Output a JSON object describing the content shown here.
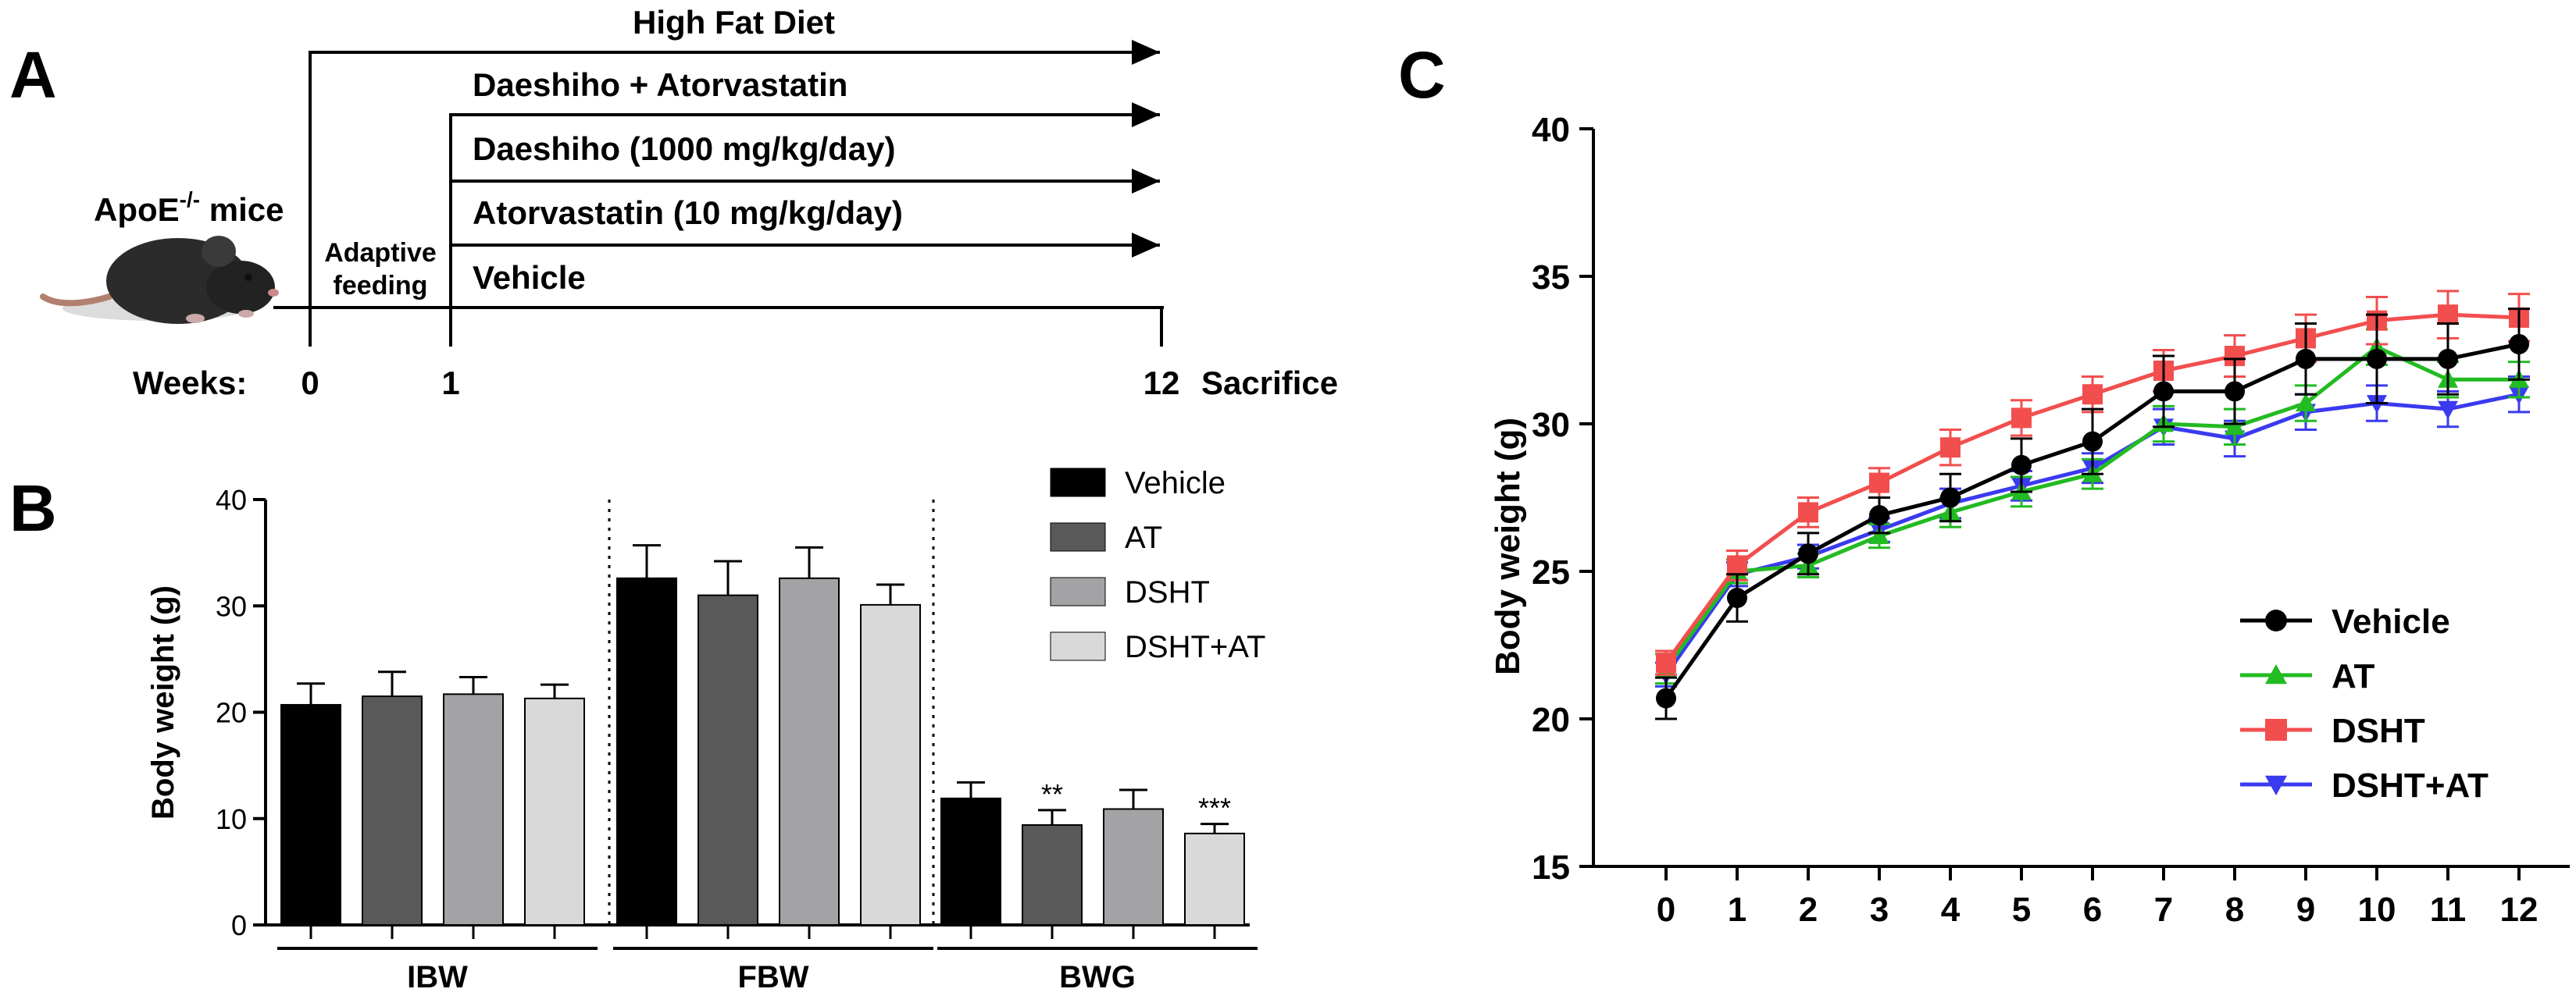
{
  "panel_a": {
    "letter": "A",
    "high_fat_diet": "High Fat Diet",
    "groups": [
      "Daeshiho + Atorvastatin",
      "Daeshiho (1000 mg/kg/day)",
      "Atorvastatin (10 mg/kg/day)",
      "Vehicle"
    ],
    "mice_label": "ApoE",
    "mice_sup": "-/-",
    "mice_suffix": " mice",
    "adaptive_line1": "Adaptive",
    "adaptive_line2": "feeding",
    "weeks_label": "Weeks:",
    "week_ticks": [
      "0",
      "1",
      "12"
    ],
    "sacrifice": "Sacrifice"
  },
  "panel_b": {
    "letter": "B",
    "ylabel": "Body weight (g)"
  },
  "panel_c": {
    "letter": "C",
    "ylabel": "Body weight (g)"
  },
  "chart_data": [
    {
      "type": "bar",
      "title": "",
      "ylabel": "Body weight (g)",
      "ylim": [
        0,
        40
      ],
      "yticks": [
        "0",
        "10",
        "20",
        "30",
        "40"
      ],
      "categories": [
        "IBW",
        "FBW",
        "BWG"
      ],
      "colors": [
        "#000000",
        "#595959",
        "#a3a3a6",
        "#d9d9d9"
      ],
      "series": [
        {
          "name": "Vehicle",
          "values": [
            20.7,
            32.6,
            11.9
          ],
          "errors": [
            2.0,
            3.1,
            1.5
          ],
          "annotations": [
            "",
            "",
            ""
          ]
        },
        {
          "name": "AT",
          "values": [
            21.5,
            31.0,
            9.4
          ],
          "errors": [
            2.3,
            3.2,
            1.4
          ],
          "annotations": [
            "",
            "",
            "**"
          ]
        },
        {
          "name": "DSHT",
          "values": [
            21.7,
            32.6,
            10.9
          ],
          "errors": [
            1.6,
            2.9,
            1.8
          ],
          "annotations": [
            "",
            "",
            ""
          ]
        },
        {
          "name": "DSHT+AT",
          "values": [
            21.3,
            30.1,
            8.6
          ],
          "errors": [
            1.3,
            1.9,
            0.9
          ],
          "annotations": [
            "",
            "",
            "***"
          ]
        }
      ]
    },
    {
      "type": "line",
      "title": "",
      "ylabel": "Body weight (g)",
      "xlabel": "",
      "ylim": [
        15,
        40
      ],
      "yticks": [
        "15",
        "20",
        "25",
        "30",
        "35",
        "40"
      ],
      "x": [
        "0",
        "1",
        "2",
        "3",
        "4",
        "5",
        "6",
        "7",
        "8",
        "9",
        "10",
        "11",
        "12"
      ],
      "series": [
        {
          "name": "Vehicle",
          "color": "#000000",
          "marker": "circle",
          "values": [
            20.7,
            24.1,
            25.6,
            26.9,
            27.5,
            28.6,
            29.4,
            31.1,
            31.1,
            32.2,
            32.2,
            32.2,
            32.7
          ],
          "errors": [
            0.7,
            0.8,
            0.7,
            0.6,
            0.8,
            0.9,
            1.1,
            1.2,
            1.1,
            1.2,
            1.5,
            1.2,
            1.2
          ]
        },
        {
          "name": "AT",
          "color": "#22bb22",
          "marker": "triangle-up",
          "values": [
            21.7,
            25.0,
            25.2,
            26.2,
            27.0,
            27.7,
            28.3,
            30.0,
            29.9,
            30.7,
            32.6,
            31.5,
            31.5
          ],
          "errors": [
            0.5,
            0.4,
            0.4,
            0.4,
            0.5,
            0.5,
            0.5,
            0.6,
            0.6,
            0.6,
            0.6,
            0.6,
            0.6
          ]
        },
        {
          "name": "DSHT",
          "color": "#f24e4e",
          "marker": "square",
          "values": [
            21.9,
            25.2,
            27.0,
            28.0,
            29.2,
            30.2,
            31.0,
            31.8,
            32.3,
            32.9,
            33.5,
            33.7,
            33.6
          ],
          "errors": [
            0.4,
            0.5,
            0.5,
            0.5,
            0.6,
            0.6,
            0.6,
            0.7,
            0.7,
            0.8,
            0.8,
            0.8,
            0.8
          ]
        },
        {
          "name": "DSHT+AT",
          "color": "#3a3af0",
          "marker": "triangle-down",
          "values": [
            21.5,
            24.9,
            25.5,
            26.4,
            27.3,
            27.9,
            28.5,
            29.9,
            29.5,
            30.4,
            30.7,
            30.5,
            31.0
          ],
          "errors": [
            0.4,
            0.4,
            0.4,
            0.4,
            0.5,
            0.5,
            0.5,
            0.6,
            0.6,
            0.6,
            0.6,
            0.6,
            0.6
          ]
        }
      ]
    }
  ]
}
